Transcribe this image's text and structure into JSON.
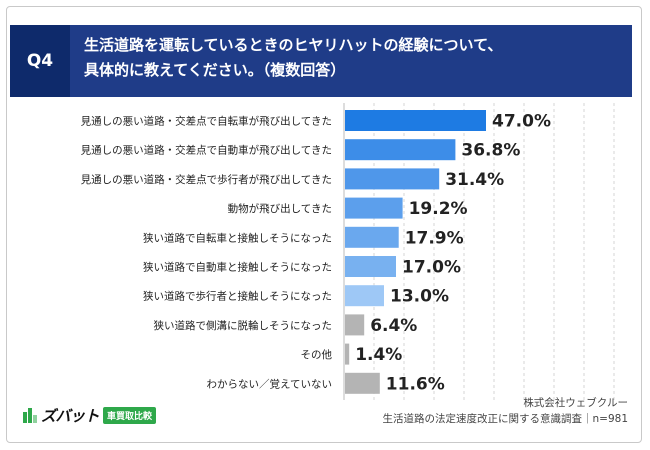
{
  "header": {
    "question_no": "Q4",
    "title_line1": "生活道路を運転しているときのヒヤリハットの経験について、",
    "title_line2": "具体的に教えてください。（複数回答）"
  },
  "colors": {
    "header_bg": "#1f3c88",
    "qbox_bg": "#0e2a6b",
    "bar_colors": [
      "#1e7be3",
      "#3d8de8",
      "#4f97ea",
      "#5c9fec",
      "#6aa8ee",
      "#78b1f0",
      "#9ec8f6",
      "#b4b4b4",
      "#b4b4b4",
      "#b4b4b4"
    ],
    "logo_green": "#2ea84a"
  },
  "chart_data": {
    "type": "bar",
    "orientation": "horizontal",
    "categories": [
      "見通しの悪い道路・交差点で自転車が飛び出してきた",
      "見通しの悪い道路・交差点で自動車が飛び出してきた",
      "見通しの悪い道路・交差点で歩行者が飛び出してきた",
      "動物が飛び出してきた",
      "狭い道路で自転車と接触しそうになった",
      "狭い道路で自動車と接触しそうになった",
      "狭い道路で歩行者と接触しそうになった",
      "狭い道路で側溝に脱輪しそうになった",
      "その他",
      "わからない／覚えていない"
    ],
    "values": [
      47.0,
      36.8,
      31.4,
      19.2,
      17.9,
      17.0,
      13.0,
      6.4,
      1.4,
      11.6
    ],
    "value_labels": [
      "47.0%",
      "36.8%",
      "31.4%",
      "19.2%",
      "17.9%",
      "17.0%",
      "13.0%",
      "6.4%",
      "1.4%",
      "11.6%"
    ],
    "xlim": [
      0,
      100
    ],
    "grid": true
  },
  "footer": {
    "company": "株式会社ウェブクルー",
    "survey": "生活道路の法定速度改正に関する意識調査｜n=981"
  },
  "logo": {
    "text": "ズバット",
    "badge": "車買取比較"
  }
}
